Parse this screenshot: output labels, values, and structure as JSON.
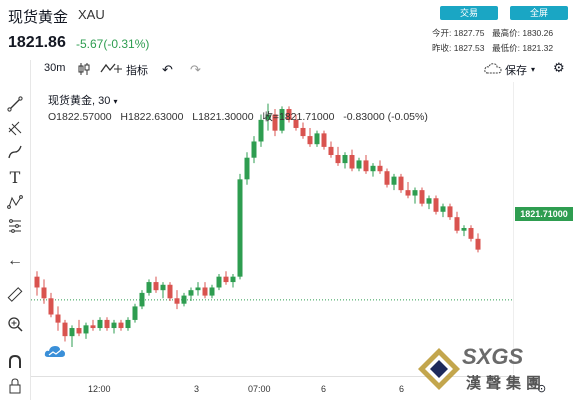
{
  "header": {
    "title": "现货黄金",
    "symbol": "XAU",
    "price": "1821.86",
    "change": "-5.67(-0.31%)",
    "trade_button": "交易",
    "fullscreen_button": "全屏",
    "stats": {
      "today_open_label": "今开:",
      "today_open": "1827.75",
      "high_label": "最高价:",
      "high": "1830.26",
      "prev_close_label": "昨收:",
      "prev_close": "1827.53",
      "low_label": "最低价:",
      "low": "1821.32"
    }
  },
  "toolbar": {
    "interval": "30m",
    "indicators_label": "指标",
    "save_label": "保存"
  },
  "legend": {
    "name": "现货黄金",
    "interval": "30",
    "open": "O1822.57000",
    "high": "H1822.63000",
    "low": "L1821.30000",
    "close": "收=1821.71000",
    "change": "-0.83000 (-0.05%)"
  },
  "current_price_tag": "1821.71000",
  "x_axis": {
    "labels": [
      "12:00",
      "3",
      "07:00",
      "6",
      "6"
    ]
  },
  "watermark": {
    "brand": "SXGS",
    "text": "漢聲集團"
  },
  "colors": {
    "up": "#2e9d50",
    "down": "#d9534f",
    "accent": "#1aa6c4"
  },
  "chart_data": {
    "type": "candlestick",
    "title": "",
    "candles": [
      [
        1826.0,
        1827.0,
        1822.5,
        1824.0
      ],
      [
        1824.0,
        1825.5,
        1821.0,
        1822.0
      ],
      [
        1822.0,
        1823.0,
        1818.5,
        1819.0
      ],
      [
        1819.0,
        1820.5,
        1816.0,
        1817.5
      ],
      [
        1817.5,
        1818.0,
        1814.0,
        1815.0
      ],
      [
        1815.0,
        1817.0,
        1813.0,
        1816.5
      ],
      [
        1816.5,
        1818.0,
        1815.0,
        1815.5
      ],
      [
        1815.5,
        1817.5,
        1814.5,
        1817.0
      ],
      [
        1817.0,
        1818.0,
        1816.0,
        1816.5
      ],
      [
        1816.5,
        1818.5,
        1816.0,
        1818.0
      ],
      [
        1818.0,
        1818.5,
        1816.0,
        1816.5
      ],
      [
        1816.5,
        1818.0,
        1815.5,
        1817.5
      ],
      [
        1817.5,
        1818.0,
        1816.0,
        1816.5
      ],
      [
        1816.5,
        1818.5,
        1816.0,
        1818.0
      ],
      [
        1818.0,
        1821.0,
        1817.5,
        1820.5
      ],
      [
        1820.5,
        1823.5,
        1820.0,
        1823.0
      ],
      [
        1823.0,
        1825.5,
        1822.5,
        1825.0
      ],
      [
        1825.0,
        1826.0,
        1823.0,
        1823.5
      ],
      [
        1823.5,
        1825.0,
        1822.0,
        1824.5
      ],
      [
        1824.5,
        1825.0,
        1821.5,
        1822.0
      ],
      [
        1822.0,
        1823.5,
        1820.0,
        1821.0
      ],
      [
        1821.0,
        1823.0,
        1820.5,
        1822.5
      ],
      [
        1822.5,
        1824.0,
        1821.5,
        1823.5
      ],
      [
        1823.5,
        1825.0,
        1822.5,
        1824.0
      ],
      [
        1824.0,
        1825.0,
        1822.0,
        1822.5
      ],
      [
        1822.5,
        1824.5,
        1822.0,
        1824.0
      ],
      [
        1824.0,
        1826.5,
        1823.5,
        1826.0
      ],
      [
        1826.0,
        1827.0,
        1824.5,
        1825.0
      ],
      [
        1825.0,
        1826.5,
        1824.0,
        1826.0
      ],
      [
        1826.0,
        1845.0,
        1825.5,
        1844.0
      ],
      [
        1844.0,
        1849.0,
        1843.0,
        1848.0
      ],
      [
        1848.0,
        1852.0,
        1847.0,
        1851.0
      ],
      [
        1851.0,
        1856.0,
        1850.0,
        1855.0
      ],
      [
        1855.0,
        1858.0,
        1853.0,
        1856.0
      ],
      [
        1856.0,
        1857.0,
        1852.0,
        1853.0
      ],
      [
        1853.0,
        1857.5,
        1852.5,
        1857.0
      ],
      [
        1857.0,
        1857.5,
        1854.5,
        1855.0
      ],
      [
        1855.0,
        1856.0,
        1853.0,
        1853.5
      ],
      [
        1853.5,
        1854.5,
        1851.5,
        1852.0
      ],
      [
        1852.0,
        1853.5,
        1850.0,
        1850.5
      ],
      [
        1850.5,
        1853.0,
        1850.0,
        1852.5
      ],
      [
        1852.5,
        1853.0,
        1849.5,
        1850.0
      ],
      [
        1850.0,
        1851.0,
        1848.0,
        1848.5
      ],
      [
        1848.5,
        1850.0,
        1846.5,
        1847.0
      ],
      [
        1847.0,
        1849.0,
        1846.0,
        1848.5
      ],
      [
        1848.5,
        1849.5,
        1845.5,
        1846.0
      ],
      [
        1846.0,
        1848.0,
        1845.5,
        1847.5
      ],
      [
        1847.5,
        1848.5,
        1845.0,
        1845.5
      ],
      [
        1845.5,
        1847.0,
        1844.5,
        1846.5
      ],
      [
        1846.5,
        1847.5,
        1845.0,
        1845.5
      ],
      [
        1845.5,
        1846.0,
        1842.5,
        1843.0
      ],
      [
        1843.0,
        1845.0,
        1842.0,
        1844.5
      ],
      [
        1844.5,
        1845.0,
        1841.5,
        1842.0
      ],
      [
        1842.0,
        1843.5,
        1840.5,
        1841.0
      ],
      [
        1841.0,
        1842.5,
        1839.5,
        1842.0
      ],
      [
        1842.0,
        1842.5,
        1839.0,
        1839.5
      ],
      [
        1839.5,
        1841.0,
        1838.5,
        1840.5
      ],
      [
        1840.5,
        1841.0,
        1837.5,
        1838.0
      ],
      [
        1838.0,
        1839.5,
        1837.0,
        1839.0
      ],
      [
        1839.0,
        1839.5,
        1836.5,
        1837.0
      ],
      [
        1837.0,
        1838.0,
        1834.0,
        1834.5
      ],
      [
        1834.5,
        1835.5,
        1833.5,
        1835.0
      ],
      [
        1835.0,
        1835.5,
        1832.5,
        1833.0
      ],
      [
        1833.0,
        1834.0,
        1830.5,
        1831.0
      ]
    ],
    "last_close": 1821.71,
    "x_labels": [
      "12:00",
      "3",
      "07:00",
      "6",
      "6"
    ]
  }
}
